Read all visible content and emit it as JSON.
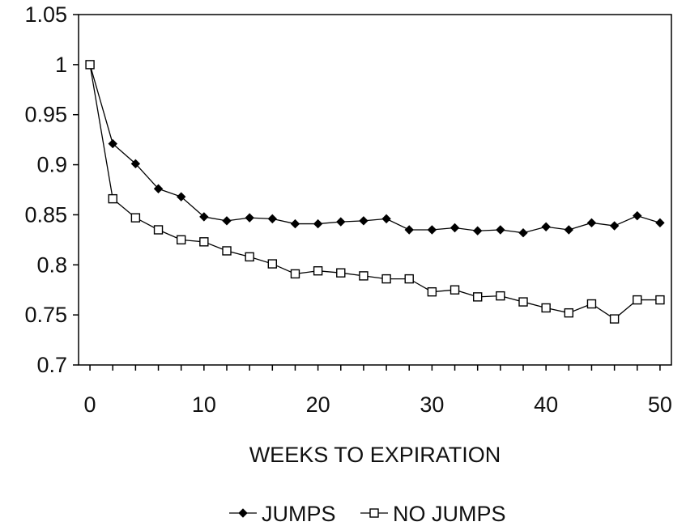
{
  "chart_data": {
    "type": "line",
    "title": "",
    "xlabel": "WEEKS TO EXPIRATION",
    "ylabel": "",
    "xlim": [
      -1,
      51
    ],
    "ylim": [
      0.7,
      1.05
    ],
    "xticks": [
      0,
      10,
      20,
      30,
      40,
      50
    ],
    "yticks": [
      0.7,
      0.75,
      0.8,
      0.85,
      0.9,
      0.95,
      1,
      1.05
    ],
    "xtick_labels": [
      "0",
      "10",
      "20",
      "30",
      "40",
      "50"
    ],
    "ytick_labels": [
      "0.7",
      "0.75",
      "0.8",
      "0.85",
      "0.9",
      "0.95",
      "1",
      "1.05"
    ],
    "grid": false,
    "legend_position": "bottom-center",
    "series": [
      {
        "name": "JUMPS",
        "marker": "diamond-filled",
        "color": "#000000",
        "x": [
          0,
          2,
          4,
          6,
          8,
          10,
          12,
          14,
          16,
          18,
          20,
          22,
          24,
          26,
          28,
          30,
          32,
          34,
          36,
          38,
          40,
          42,
          44,
          46,
          48,
          50
        ],
        "y": [
          1.0,
          0.921,
          0.901,
          0.876,
          0.868,
          0.848,
          0.844,
          0.847,
          0.846,
          0.841,
          0.841,
          0.843,
          0.844,
          0.846,
          0.835,
          0.835,
          0.837,
          0.834,
          0.835,
          0.832,
          0.838,
          0.835,
          0.842,
          0.839,
          0.849,
          0.842
        ]
      },
      {
        "name": "NO JUMPS",
        "marker": "square-open",
        "color": "#000000",
        "x": [
          0,
          2,
          4,
          6,
          8,
          10,
          12,
          14,
          16,
          18,
          20,
          22,
          24,
          26,
          28,
          30,
          32,
          34,
          36,
          38,
          40,
          42,
          44,
          46,
          48,
          50
        ],
        "y": [
          1.0,
          0.866,
          0.847,
          0.835,
          0.825,
          0.823,
          0.814,
          0.808,
          0.801,
          0.791,
          0.794,
          0.792,
          0.789,
          0.786,
          0.786,
          0.773,
          0.775,
          0.768,
          0.769,
          0.763,
          0.757,
          0.752,
          0.761,
          0.746,
          0.765,
          0.765
        ]
      }
    ]
  }
}
